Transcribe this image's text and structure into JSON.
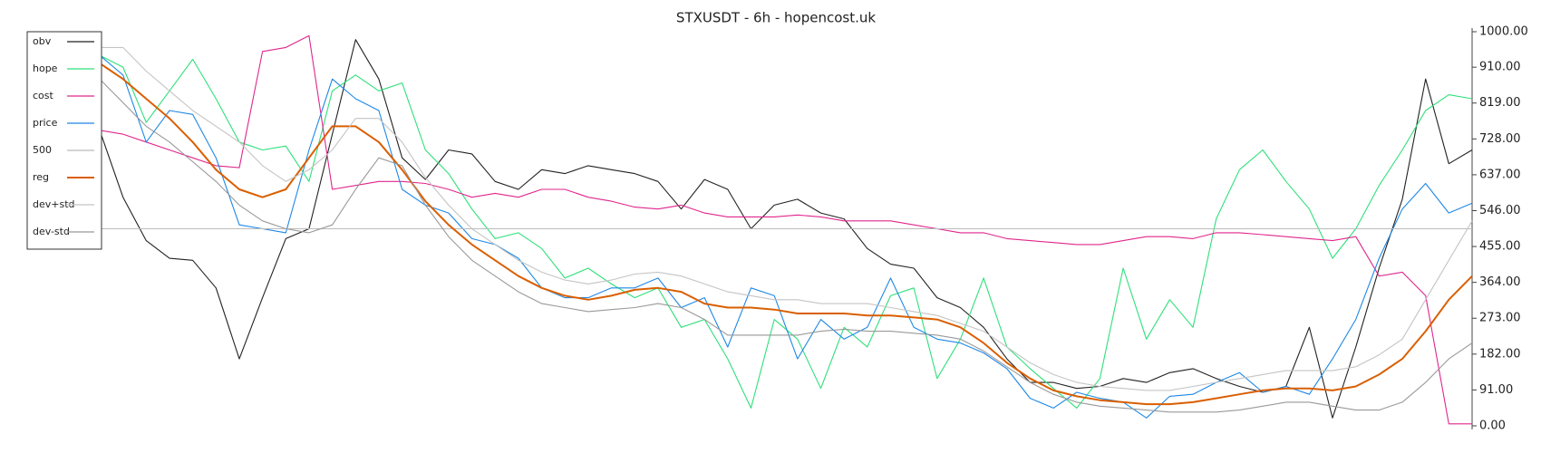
{
  "chart_data": {
    "type": "line",
    "title": "STXUSDT - 6h - hopencost.uk",
    "ylim": [
      0,
      1000
    ],
    "yticks": [
      {
        "value": 0,
        "label": "0.00"
      },
      {
        "value": 91,
        "label": "91.00"
      },
      {
        "value": 182,
        "label": "182.00"
      },
      {
        "value": 273,
        "label": "273.00"
      },
      {
        "value": 364,
        "label": "364.00"
      },
      {
        "value": 455,
        "label": "455.00"
      },
      {
        "value": 546,
        "label": "546.00"
      },
      {
        "value": 637,
        "label": "637.00"
      },
      {
        "value": 728,
        "label": "728.00"
      },
      {
        "value": 819,
        "label": "819.00"
      },
      {
        "value": 910,
        "label": "910.00"
      },
      {
        "value": 1000,
        "label": "1000.00"
      }
    ],
    "legend": "upper left",
    "series": [
      {
        "name": "obv",
        "color": "#222222",
        "values": [
          750,
          580,
          470,
          425,
          420,
          350,
          170,
          325,
          475,
          500,
          740,
          980,
          880,
          680,
          625,
          700,
          690,
          620,
          600,
          650,
          640,
          660,
          650,
          640,
          620,
          550,
          625,
          600,
          500,
          560,
          575,
          540,
          525,
          450,
          410,
          400,
          325,
          300,
          250,
          170,
          110,
          110,
          95,
          100,
          120,
          110,
          135,
          145,
          120,
          100,
          85,
          100,
          250,
          20,
          200,
          400,
          575,
          880,
          665,
          700
        ]
      },
      {
        "name": "hope",
        "color": "#2ee07a",
        "values": [
          940,
          910,
          770,
          850,
          930,
          830,
          720,
          700,
          710,
          620,
          850,
          890,
          850,
          870,
          700,
          640,
          550,
          475,
          490,
          450,
          375,
          400,
          360,
          325,
          350,
          250,
          270,
          170,
          45,
          270,
          220,
          95,
          250,
          200,
          330,
          350,
          120,
          220,
          375,
          200,
          145,
          95,
          45,
          120,
          400,
          220,
          320,
          250,
          525,
          650,
          700,
          620,
          550,
          425,
          500,
          610,
          700,
          800,
          840,
          830
        ]
      },
      {
        "name": "cost",
        "color": "#e0268c",
        "values": [
          750,
          740,
          720,
          700,
          680,
          660,
          655,
          950,
          960,
          990,
          600,
          610,
          620,
          620,
          615,
          600,
          580,
          590,
          580,
          600,
          600,
          580,
          570,
          555,
          550,
          560,
          540,
          530,
          530,
          530,
          535,
          530,
          520,
          520,
          520,
          510,
          500,
          490,
          490,
          475,
          470,
          465,
          460,
          460,
          470,
          480,
          480,
          475,
          490,
          490,
          485,
          480,
          475,
          470,
          480,
          380,
          390,
          330,
          5,
          5
        ]
      },
      {
        "name": "price",
        "color": "#1e88e5",
        "values": [
          940,
          890,
          720,
          800,
          790,
          680,
          510,
          500,
          490,
          700,
          880,
          830,
          800,
          600,
          560,
          540,
          475,
          460,
          425,
          350,
          325,
          325,
          350,
          350,
          375,
          300,
          325,
          200,
          350,
          330,
          170,
          270,
          220,
          250,
          375,
          250,
          220,
          210,
          185,
          145,
          70,
          45,
          85,
          70,
          60,
          20,
          75,
          80,
          110,
          135,
          85,
          100,
          80,
          170,
          270,
          425,
          550,
          615,
          540,
          565
        ]
      },
      {
        "name": "500",
        "color": "#bbbbbb",
        "values": [
          500,
          500,
          500,
          500,
          500,
          500,
          500,
          500,
          500,
          500,
          500,
          500,
          500,
          500,
          500,
          500,
          500,
          500,
          500,
          500,
          500,
          500,
          500,
          500,
          500,
          500,
          500,
          500,
          500,
          500,
          500,
          500,
          500,
          500,
          500,
          500,
          500,
          500,
          500,
          500,
          500,
          500,
          500,
          500,
          500,
          500,
          500,
          500,
          500,
          500,
          500,
          500,
          500,
          500,
          500,
          500,
          500,
          500,
          500,
          500
        ]
      },
      {
        "name": "reg",
        "color": "#d95f02",
        "width": 2,
        "values": [
          920,
          880,
          830,
          780,
          720,
          650,
          600,
          580,
          600,
          680,
          760,
          760,
          720,
          650,
          570,
          510,
          460,
          420,
          380,
          350,
          330,
          320,
          330,
          345,
          350,
          340,
          310,
          300,
          300,
          295,
          285,
          285,
          285,
          280,
          280,
          275,
          270,
          250,
          210,
          160,
          120,
          90,
          75,
          65,
          60,
          55,
          55,
          60,
          70,
          80,
          90,
          95,
          95,
          90,
          100,
          130,
          170,
          240,
          320,
          380
        ]
      },
      {
        "name": "dev+std",
        "color": "#c4c4c4",
        "values": [
          960,
          960,
          900,
          850,
          800,
          760,
          720,
          660,
          620,
          650,
          700,
          780,
          780,
          720,
          630,
          560,
          500,
          460,
          420,
          390,
          370,
          360,
          370,
          385,
          390,
          380,
          360,
          340,
          330,
          320,
          320,
          310,
          310,
          310,
          300,
          290,
          280,
          260,
          240,
          200,
          160,
          130,
          110,
          100,
          95,
          90,
          90,
          100,
          110,
          120,
          130,
          140,
          140,
          140,
          150,
          180,
          220,
          320,
          420,
          520
        ]
      },
      {
        "name": "dev-std",
        "color": "#999999",
        "values": [
          880,
          820,
          760,
          720,
          670,
          620,
          560,
          520,
          500,
          490,
          510,
          600,
          680,
          660,
          560,
          480,
          420,
          380,
          340,
          310,
          300,
          290,
          295,
          300,
          310,
          300,
          270,
          230,
          230,
          230,
          230,
          240,
          245,
          240,
          240,
          235,
          230,
          220,
          190,
          150,
          110,
          80,
          60,
          50,
          45,
          40,
          35,
          35,
          35,
          40,
          50,
          60,
          60,
          50,
          40,
          40,
          60,
          110,
          170,
          210
        ]
      }
    ]
  }
}
